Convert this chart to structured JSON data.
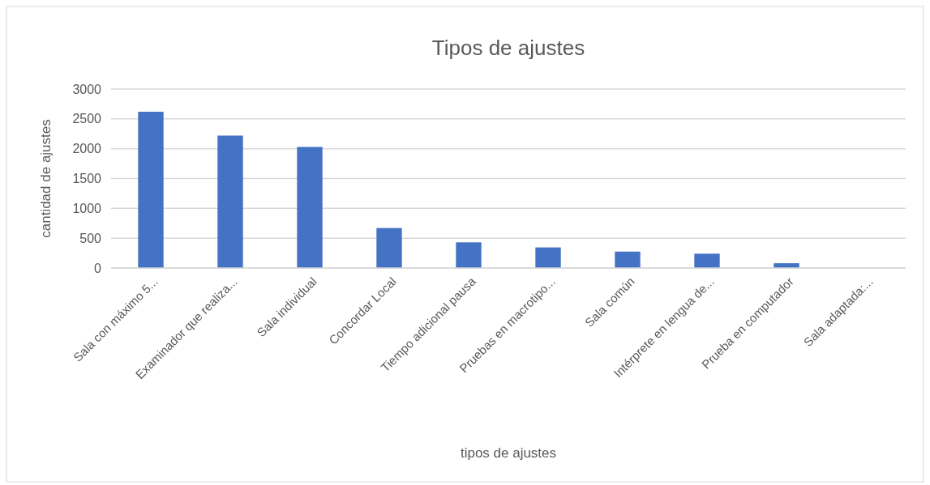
{
  "chart_data": {
    "type": "bar",
    "title": "Tipos de ajustes",
    "xlabel": "tipos de ajustes",
    "ylabel": "cantidad de ajustes",
    "categories": [
      "Sala con máximo 5...",
      "Examinador que realiza...",
      "Sala individual",
      "Concordar Local",
      "Tiempo adicional pausa",
      "Pruebas en macrotipo...",
      "Sala común",
      "Intérprete en lengua de...",
      "Prueba en computador",
      "Sala adaptada:..."
    ],
    "values": [
      2620,
      2220,
      2030,
      670,
      430,
      345,
      275,
      240,
      80,
      0
    ],
    "color": "#4472c4",
    "ylim": [
      0,
      3000
    ],
    "yticks": [
      0,
      500,
      1000,
      1500,
      2000,
      2500,
      3000
    ],
    "grid": "y"
  }
}
